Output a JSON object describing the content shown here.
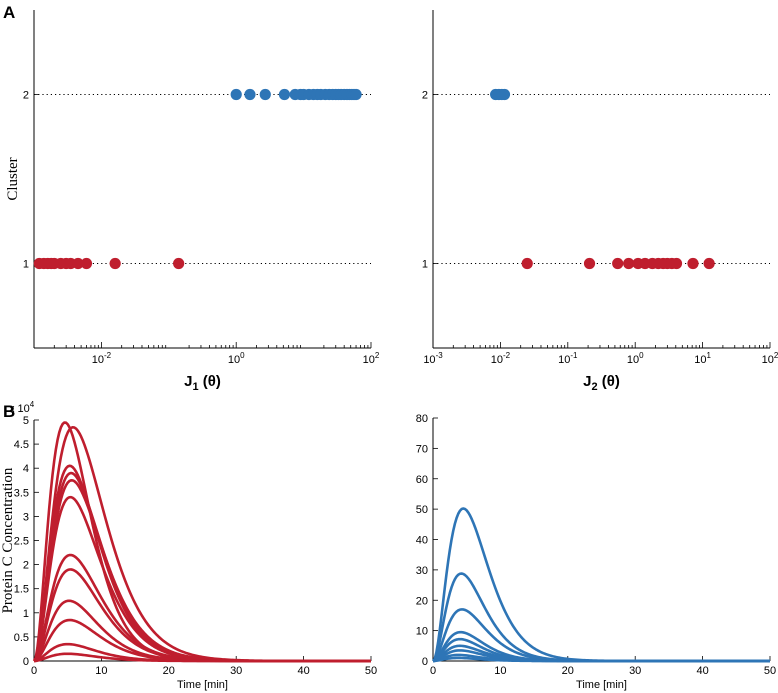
{
  "panel_labels": {
    "a": "A",
    "b": "B"
  },
  "colors": {
    "cluster1": "#bf1e2e",
    "cluster2": "#2e75b6"
  },
  "chart_data": [
    {
      "id": "j1",
      "type": "scatter",
      "title": "",
      "xlabel_main": "J",
      "xlabel_sub": "1",
      "xlabel_suffix": " (θ)",
      "ylabel": "Cluster",
      "xscale": "log",
      "xlim": [
        0.001,
        100
      ],
      "ylim": [
        0.5,
        2.5
      ],
      "xtick_values": [
        0.01,
        1,
        100
      ],
      "xtick_labels": [
        {
          "base": "10",
          "exp": "-2"
        },
        {
          "base": "10",
          "exp": "0"
        },
        {
          "base": "10",
          "exp": "2"
        }
      ],
      "ytick_values": [
        1,
        2
      ],
      "ytick_labels": [
        "1",
        "2"
      ],
      "grid": "dotted horizontal lines at clusters",
      "series": [
        {
          "name": "cluster 1",
          "color": "#bf1e2e",
          "y": 1,
          "x": [
            0.0012,
            0.0014,
            0.0016,
            0.0018,
            0.002,
            0.0025,
            0.003,
            0.0035,
            0.0045,
            0.006,
            0.016,
            0.14
          ]
        },
        {
          "name": "cluster 2",
          "color": "#2e75b6",
          "y": 2,
          "x": [
            1.0,
            1.6,
            2.7,
            5.2,
            7.5,
            9,
            10,
            12,
            14,
            16,
            18,
            21,
            24,
            27,
            30,
            33,
            36,
            40,
            44,
            48,
            52,
            56,
            60
          ]
        }
      ]
    },
    {
      "id": "j2",
      "type": "scatter",
      "title": "",
      "xlabel_main": "J",
      "xlabel_sub": "2",
      "xlabel_suffix": " (θ)",
      "ylabel": "",
      "xscale": "log",
      "xlim": [
        0.001,
        100
      ],
      "ylim": [
        0.5,
        2.5
      ],
      "xtick_values": [
        0.001,
        0.01,
        0.1,
        1,
        10,
        100
      ],
      "xtick_labels": [
        {
          "base": "10",
          "exp": "-3"
        },
        {
          "base": "10",
          "exp": "-2"
        },
        {
          "base": "10",
          "exp": "-1"
        },
        {
          "base": "10",
          "exp": "0"
        },
        {
          "base": "10",
          "exp": "1"
        },
        {
          "base": "10",
          "exp": "2"
        }
      ],
      "ytick_values": [
        1,
        2
      ],
      "ytick_labels": [
        "1",
        "2"
      ],
      "grid": "dotted horizontal lines at clusters",
      "series": [
        {
          "name": "cluster 1",
          "color": "#bf1e2e",
          "y": 1,
          "x": [
            0.025,
            0.21,
            0.55,
            0.8,
            1.1,
            1.4,
            1.8,
            2.2,
            2.6,
            3.0,
            3.5,
            4.1,
            7.2,
            12.5
          ]
        },
        {
          "name": "cluster 2",
          "color": "#2e75b6",
          "y": 2,
          "x": [
            0.0085,
            0.0095,
            0.0105,
            0.0115
          ]
        }
      ]
    },
    {
      "id": "protein-red",
      "type": "line",
      "title": "",
      "xlabel": "Time [min]",
      "ylabel": "Protein C Concentration",
      "multiplier_label": {
        "prefix": "x 10",
        "exp": "4"
      },
      "xlim": [
        0,
        50
      ],
      "ylim": [
        0,
        5
      ],
      "xtick_values": [
        0,
        10,
        20,
        30,
        40,
        50
      ],
      "xtick_labels": [
        "0",
        "10",
        "20",
        "30",
        "40",
        "50"
      ],
      "ytick_values": [
        0,
        0.5,
        1,
        1.5,
        2,
        2.5,
        3,
        3.5,
        4,
        4.5,
        5
      ],
      "ytick_labels": [
        "0",
        "0.5",
        "1",
        "1.5",
        "2",
        "2.5",
        "3",
        "3.5",
        "4",
        "4.5",
        "5"
      ],
      "color": "#bf1e2e",
      "series": [
        {
          "peak": 4.95,
          "tpeak": 4.6
        },
        {
          "peak": 4.85,
          "tpeak": 5.8
        },
        {
          "peak": 4.05,
          "tpeak": 5.3
        },
        {
          "peak": 3.9,
          "tpeak": 5.5
        },
        {
          "peak": 3.75,
          "tpeak": 5.6
        },
        {
          "peak": 3.4,
          "tpeak": 5.4
        },
        {
          "peak": 2.2,
          "tpeak": 5.4
        },
        {
          "peak": 1.9,
          "tpeak": 5.4
        },
        {
          "peak": 1.25,
          "tpeak": 5.2
        },
        {
          "peak": 0.85,
          "tpeak": 5.3
        },
        {
          "peak": 0.35,
          "tpeak": 5.0
        },
        {
          "peak": 0.15,
          "tpeak": 5.0
        }
      ]
    },
    {
      "id": "protein-blue",
      "type": "line",
      "title": "",
      "xlabel": "Time [min]",
      "ylabel": "",
      "xlim": [
        0,
        50
      ],
      "ylim": [
        0,
        80
      ],
      "xtick_values": [
        0,
        10,
        20,
        30,
        40,
        50
      ],
      "xtick_labels": [
        "0",
        "10",
        "20",
        "30",
        "40",
        "50"
      ],
      "ytick_values": [
        0,
        10,
        20,
        30,
        40,
        50,
        60,
        70,
        80
      ],
      "ytick_labels": [
        "0",
        "10",
        "20",
        "30",
        "40",
        "50",
        "60",
        "70",
        "80"
      ],
      "color": "#2e75b6",
      "series": [
        {
          "peak": 50.2,
          "tpeak": 4.5
        },
        {
          "peak": 28.8,
          "tpeak": 4.2
        },
        {
          "peak": 17.0,
          "tpeak": 4.3
        },
        {
          "peak": 9.5,
          "tpeak": 4.1
        },
        {
          "peak": 7.2,
          "tpeak": 4.0
        },
        {
          "peak": 5.0,
          "tpeak": 4.0
        },
        {
          "peak": 3.5,
          "tpeak": 4.0
        },
        {
          "peak": 2.0,
          "tpeak": 3.8
        },
        {
          "peak": 1.0,
          "tpeak": 3.8
        }
      ]
    }
  ]
}
